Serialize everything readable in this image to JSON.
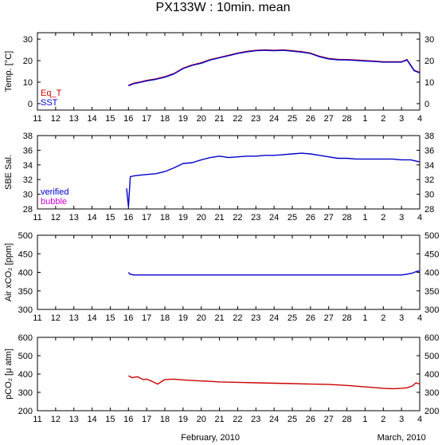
{
  "title": "PX133W : 10min. mean",
  "footer": {
    "left": "February, 2010",
    "right": "March, 2010"
  },
  "x_ticks": [
    "11",
    "12",
    "13",
    "14",
    "15",
    "16",
    "17",
    "18",
    "19",
    "20",
    "21",
    "22",
    "23",
    "24",
    "25",
    "26",
    "27",
    "28",
    "1",
    "2",
    "3",
    "4"
  ],
  "colors": {
    "red": "#cc0000",
    "blue": "#0000cc",
    "magenta": "#cc00cc"
  },
  "chart_data": [
    {
      "type": "line",
      "ylabel": "Temp. [°C]",
      "ylim": [
        -3,
        33
      ],
      "yticks": [
        0,
        10,
        20,
        30
      ],
      "xlim": [
        0,
        21
      ],
      "series": [
        {
          "name": "Eq_T",
          "color": "#cc0000",
          "x": [
            5.0,
            5.3,
            5.6,
            6.0,
            6.5,
            7.0,
            7.5,
            8.0,
            8.5,
            9.0,
            9.5,
            10.0,
            10.5,
            11.0,
            11.5,
            12.0,
            12.5,
            13.0,
            13.5,
            14.0,
            14.5,
            15.0,
            15.5,
            16.0,
            16.5,
            17.0,
            17.5,
            18.0,
            18.5,
            19.0,
            19.5,
            20.0,
            20.3,
            20.7,
            21.0
          ],
          "y": [
            8.5,
            9.5,
            10.0,
            10.8,
            11.5,
            12.5,
            14.0,
            16.5,
            18.0,
            19.0,
            20.5,
            21.5,
            22.5,
            23.5,
            24.3,
            24.8,
            25.0,
            24.8,
            25.0,
            24.6,
            24.2,
            23.5,
            22.0,
            21.0,
            20.6,
            20.5,
            20.3,
            20.0,
            19.8,
            19.5,
            19.5,
            19.5,
            20.5,
            15.5,
            14.5
          ]
        },
        {
          "name": "SST",
          "color": "#0000cc",
          "x": [
            5.0,
            5.3,
            5.6,
            6.0,
            6.5,
            7.0,
            7.5,
            8.0,
            8.5,
            9.0,
            9.5,
            10.0,
            10.5,
            11.0,
            11.5,
            12.0,
            12.5,
            13.0,
            13.5,
            14.0,
            14.5,
            15.0,
            15.5,
            16.0,
            16.5,
            17.0,
            17.5,
            18.0,
            18.5,
            19.0,
            19.5,
            20.0,
            20.3,
            20.7,
            21.0
          ],
          "y": [
            8.3,
            9.3,
            9.8,
            10.6,
            11.3,
            12.3,
            13.8,
            16.3,
            17.8,
            18.8,
            20.3,
            21.3,
            22.3,
            23.3,
            24.1,
            24.6,
            24.8,
            24.6,
            24.8,
            24.4,
            24.0,
            23.3,
            21.8,
            20.8,
            20.4,
            20.3,
            20.1,
            19.8,
            19.6,
            19.3,
            19.3,
            19.3,
            20.3,
            15.3,
            14.3
          ]
        }
      ]
    },
    {
      "type": "line",
      "ylabel": "SBE Sal.",
      "ylim": [
        28,
        38
      ],
      "yticks": [
        28,
        30,
        32,
        34,
        36,
        38
      ],
      "xlim": [
        0,
        21
      ],
      "series": [
        {
          "name": "verified",
          "color": "#0000cc",
          "x": [
            4.9,
            4.92,
            4.95,
            4.97,
            5.0,
            5.1,
            5.3,
            5.6,
            6.0,
            6.5,
            7.0,
            7.5,
            8.0,
            8.5,
            9.0,
            9.5,
            10.0,
            10.5,
            11.0,
            11.5,
            12.0,
            12.5,
            13.0,
            13.5,
            14.0,
            14.5,
            15.0,
            15.5,
            16.0,
            16.5,
            17.0,
            17.5,
            18.0,
            18.5,
            19.0,
            19.5,
            20.0,
            20.5,
            21.0
          ],
          "y": [
            30.8,
            30.2,
            29.5,
            29.0,
            28.3,
            32.4,
            32.5,
            32.6,
            32.7,
            32.8,
            33.1,
            33.6,
            34.2,
            34.3,
            34.7,
            35.0,
            35.2,
            35.0,
            35.1,
            35.2,
            35.2,
            35.3,
            35.3,
            35.4,
            35.5,
            35.6,
            35.5,
            35.3,
            35.1,
            34.9,
            34.9,
            34.8,
            34.8,
            34.8,
            34.8,
            34.8,
            34.7,
            34.7,
            34.4
          ]
        },
        {
          "name": "bubble",
          "color": "#cc00cc",
          "x": [],
          "y": []
        }
      ]
    },
    {
      "type": "line",
      "ylabel": "Air xCO₂ [ppm]",
      "ylim": [
        300,
        500
      ],
      "yticks": [
        300,
        350,
        400,
        450,
        500
      ],
      "xlim": [
        0,
        21
      ],
      "series": [
        {
          "name": "Air xCO2",
          "color": "#0000cc",
          "x": [
            5.0,
            5.05,
            5.1,
            5.3,
            5.6,
            6.0,
            7.0,
            8.0,
            9.0,
            10.0,
            11.0,
            12.0,
            13.0,
            14.0,
            15.0,
            16.0,
            17.0,
            18.0,
            19.0,
            20.0,
            20.3,
            20.6,
            20.8,
            21.0
          ],
          "y": [
            400,
            397,
            395,
            393,
            393,
            393,
            393,
            393,
            393,
            393,
            393,
            393,
            393,
            393,
            393,
            393,
            393,
            393,
            393,
            393,
            395,
            398,
            402,
            404
          ]
        }
      ]
    },
    {
      "type": "line",
      "ylabel": "pCO₂ [μ atm]",
      "ylim": [
        200,
        600
      ],
      "yticks": [
        200,
        300,
        400,
        500,
        600
      ],
      "xlim": [
        0,
        21
      ],
      "series": [
        {
          "name": "pCO2",
          "color": "#cc0000",
          "x": [
            5.0,
            5.2,
            5.5,
            5.8,
            6.0,
            6.3,
            6.6,
            7.0,
            7.5,
            8.0,
            8.5,
            9.0,
            9.5,
            10.0,
            11.0,
            12.0,
            13.0,
            14.0,
            15.0,
            16.0,
            17.0,
            18.0,
            19.0,
            19.5,
            20.0,
            20.3,
            20.6,
            20.8,
            21.0
          ],
          "y": [
            390,
            380,
            385,
            370,
            372,
            360,
            345,
            370,
            372,
            368,
            365,
            362,
            360,
            357,
            355,
            352,
            350,
            348,
            345,
            343,
            338,
            330,
            322,
            320,
            322,
            325,
            335,
            352,
            345
          ]
        }
      ]
    }
  ],
  "legends": [
    {
      "panel": 0,
      "items": [
        {
          "label": "Eq_T",
          "color": "#cc0000"
        },
        {
          "label": "SST",
          "color": "#0000cc"
        }
      ]
    },
    {
      "panel": 1,
      "items": [
        {
          "label": "verified",
          "color": "#0000cc"
        },
        {
          "label": "bubble",
          "color": "#cc00cc"
        }
      ]
    }
  ]
}
